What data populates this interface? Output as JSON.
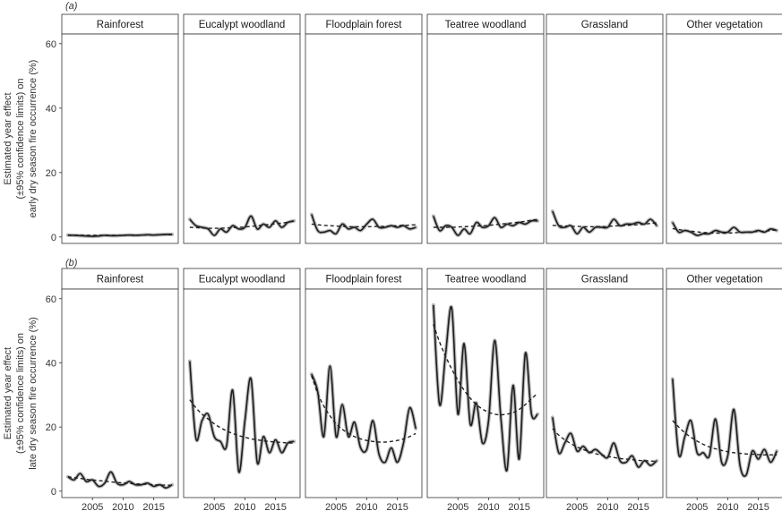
{
  "chart_data": {
    "type": "line",
    "layout": "faceted, 2 rows x 6 columns",
    "grid": false,
    "x_ticks": [
      "2005",
      "2010",
      "2015"
    ],
    "xlim": [
      2000,
      2019
    ],
    "ylim": [
      -2,
      63
    ],
    "y_ticks": [
      "0",
      "20",
      "40",
      "60"
    ],
    "facets": [
      "Rainforest",
      "Eucalypt woodland",
      "Floodplain forest",
      "Teatree woodland",
      "Grassland",
      "Other vegetation"
    ],
    "x": [
      2001,
      2002,
      2003,
      2004,
      2005,
      2006,
      2007,
      2008,
      2009,
      2010,
      2011,
      2012,
      2013,
      2014,
      2015,
      2016,
      2017,
      2018
    ],
    "series_styles": {
      "observed": "solid line with grey 95% confidence band",
      "trend": "dashed line"
    },
    "panels": [
      {
        "label": "(a)",
        "ylabel": [
          "Estimated year effect",
          "(±95% confidence limits) on",
          "early dry season fire occurrence (%)"
        ],
        "facets": [
          {
            "name": "Rainforest",
            "observed": [
              0.6,
              0.5,
              0.4,
              0.3,
              0.2,
              0.3,
              0.5,
              0.4,
              0.4,
              0.5,
              0.6,
              0.5,
              0.6,
              0.7,
              0.6,
              0.7,
              0.8,
              0.8
            ],
            "trend": [
              0.5,
              0.5,
              0.5,
              0.5,
              0.5,
              0.5,
              0.5,
              0.5,
              0.5,
              0.5,
              0.6,
              0.6,
              0.6,
              0.6,
              0.6,
              0.7,
              0.7,
              0.7
            ]
          },
          {
            "name": "Eucalypt woodland",
            "observed": [
              5.5,
              3.5,
              3.0,
              2.5,
              0.5,
              2.5,
              1.5,
              3.5,
              2.5,
              3.0,
              6.5,
              2.5,
              4.0,
              3.0,
              5.0,
              3.0,
              4.5,
              5.0
            ],
            "trend": [
              3.0,
              2.9,
              2.8,
              2.7,
              2.7,
              2.7,
              2.8,
              2.9,
              3.0,
              3.1,
              3.3,
              3.5,
              3.7,
              3.9,
              4.1,
              4.3,
              4.6,
              4.9
            ]
          },
          {
            "name": "Floodplain forest",
            "observed": [
              7.0,
              2.0,
              1.5,
              2.0,
              1.0,
              4.0,
              2.5,
              3.0,
              2.0,
              4.0,
              5.5,
              3.0,
              3.0,
              3.5,
              3.0,
              3.5,
              2.5,
              3.0
            ],
            "trend": [
              4.0,
              3.8,
              3.6,
              3.5,
              3.4,
              3.3,
              3.2,
              3.2,
              3.2,
              3.2,
              3.2,
              3.3,
              3.3,
              3.4,
              3.5,
              3.6,
              3.7,
              3.8
            ]
          },
          {
            "name": "Teatree woodland",
            "observed": [
              6.5,
              2.0,
              3.5,
              3.0,
              0.5,
              2.5,
              1.0,
              4.5,
              3.0,
              3.5,
              6.0,
              3.0,
              4.0,
              3.5,
              4.5,
              4.0,
              5.0,
              5.0
            ],
            "trend": [
              3.0,
              3.0,
              3.0,
              3.0,
              3.1,
              3.2,
              3.3,
              3.4,
              3.5,
              3.6,
              3.8,
              4.0,
              4.2,
              4.4,
              4.6,
              4.9,
              5.2,
              5.5
            ]
          },
          {
            "name": "Grassland",
            "observed": [
              8.0,
              3.5,
              3.0,
              3.5,
              1.0,
              3.0,
              1.5,
              3.0,
              3.0,
              3.0,
              5.5,
              3.5,
              4.0,
              4.0,
              4.5,
              4.0,
              5.5,
              3.5
            ],
            "trend": [
              3.6,
              3.5,
              3.4,
              3.3,
              3.3,
              3.2,
              3.2,
              3.2,
              3.2,
              3.3,
              3.4,
              3.5,
              3.6,
              3.7,
              3.8,
              4.0,
              4.2,
              4.4
            ]
          },
          {
            "name": "Other vegetation",
            "observed": [
              4.5,
              1.5,
              2.0,
              1.5,
              0.5,
              1.0,
              1.0,
              2.0,
              1.5,
              1.5,
              3.0,
              1.5,
              1.5,
              1.5,
              2.0,
              1.5,
              2.5,
              2.0
            ],
            "trend": [
              2.6,
              2.3,
              2.0,
              1.8,
              1.6,
              1.4,
              1.3,
              1.2,
              1.2,
              1.2,
              1.3,
              1.4,
              1.5,
              1.6,
              1.7,
              1.8,
              2.0,
              2.2
            ]
          }
        ]
      },
      {
        "label": "(b)",
        "ylabel": [
          "Estimated year effect",
          "(±95% confidence limits) on",
          "late dry season fire occurrence (%)"
        ],
        "facets": [
          {
            "name": "Rainforest",
            "observed": [
              4.5,
              3.5,
              5.5,
              3.0,
              3.5,
              1.5,
              2.5,
              6.0,
              2.5,
              2.0,
              3.0,
              2.0,
              2.0,
              2.5,
              1.5,
              2.0,
              1.0,
              2.0
            ],
            "trend": [
              4.5,
              4.2,
              4.0,
              3.7,
              3.5,
              3.3,
              3.1,
              2.9,
              2.7,
              2.6,
              2.4,
              2.3,
              2.2,
              2.1,
              2.0,
              1.9,
              1.9,
              1.8
            ]
          },
          {
            "name": "Eucalypt woodland",
            "observed": [
              40.5,
              16.5,
              22.0,
              24.0,
              17.0,
              15.5,
              14.0,
              31.5,
              6.0,
              22.0,
              35.0,
              9.0,
              17.0,
              12.0,
              16.0,
              12.0,
              15.0,
              15.5
            ],
            "trend": [
              28.5,
              26.0,
              24.0,
              22.5,
              21.0,
              19.8,
              18.8,
              18.0,
              17.3,
              16.8,
              16.3,
              16.0,
              15.7,
              15.5,
              15.3,
              15.2,
              15.0,
              15.0
            ]
          },
          {
            "name": "Floodplain forest",
            "observed": [
              36.5,
              31.0,
              17.0,
              39.0,
              17.0,
              27.0,
              17.0,
              21.5,
              13.5,
              13.0,
              22.0,
              11.5,
              9.0,
              13.5,
              9.0,
              15.0,
              26.0,
              19.5
            ],
            "trend": [
              36.0,
              30.5,
              26.5,
              23.5,
              21.0,
              19.3,
              18.0,
              17.0,
              16.3,
              15.8,
              15.5,
              15.3,
              15.3,
              15.5,
              15.8,
              16.3,
              17.0,
              18.0
            ]
          },
          {
            "name": "Teatree woodland",
            "observed": [
              58.0,
              27.0,
              43.0,
              57.0,
              24.0,
              46.0,
              21.0,
              27.5,
              15.0,
              22.0,
              47.0,
              23.0,
              6.5,
              33.0,
              10.0,
              43.0,
              24.0,
              24.0
            ],
            "trend": [
              52.0,
              46.5,
              42.0,
              38.0,
              34.5,
              31.5,
              29.0,
              27.0,
              25.6,
              24.6,
              24.0,
              23.8,
              24.0,
              24.5,
              25.5,
              27.0,
              28.8,
              30.5
            ]
          },
          {
            "name": "Grassland",
            "observed": [
              23.0,
              12.0,
              15.0,
              18.0,
              12.5,
              14.0,
              12.0,
              13.0,
              11.5,
              10.5,
              15.0,
              9.5,
              9.0,
              11.0,
              7.5,
              9.5,
              8.0,
              9.5
            ],
            "trend": [
              19.5,
              17.5,
              16.0,
              14.8,
              13.8,
              13.0,
              12.3,
              11.7,
              11.2,
              10.8,
              10.5,
              10.2,
              10.0,
              9.8,
              9.6,
              9.5,
              9.4,
              9.3
            ]
          },
          {
            "name": "Other vegetation",
            "observed": [
              35.0,
              11.5,
              17.0,
              22.0,
              12.0,
              12.0,
              11.0,
              22.5,
              9.0,
              11.0,
              25.5,
              8.0,
              5.0,
              12.5,
              10.0,
              13.0,
              9.0,
              12.5
            ],
            "trend": [
              22.0,
              20.0,
              18.2,
              16.8,
              15.6,
              14.6,
              13.8,
              13.2,
              12.7,
              12.3,
              12.0,
              11.8,
              11.6,
              11.5,
              11.4,
              11.3,
              11.3,
              11.3
            ]
          }
        ]
      }
    ]
  }
}
